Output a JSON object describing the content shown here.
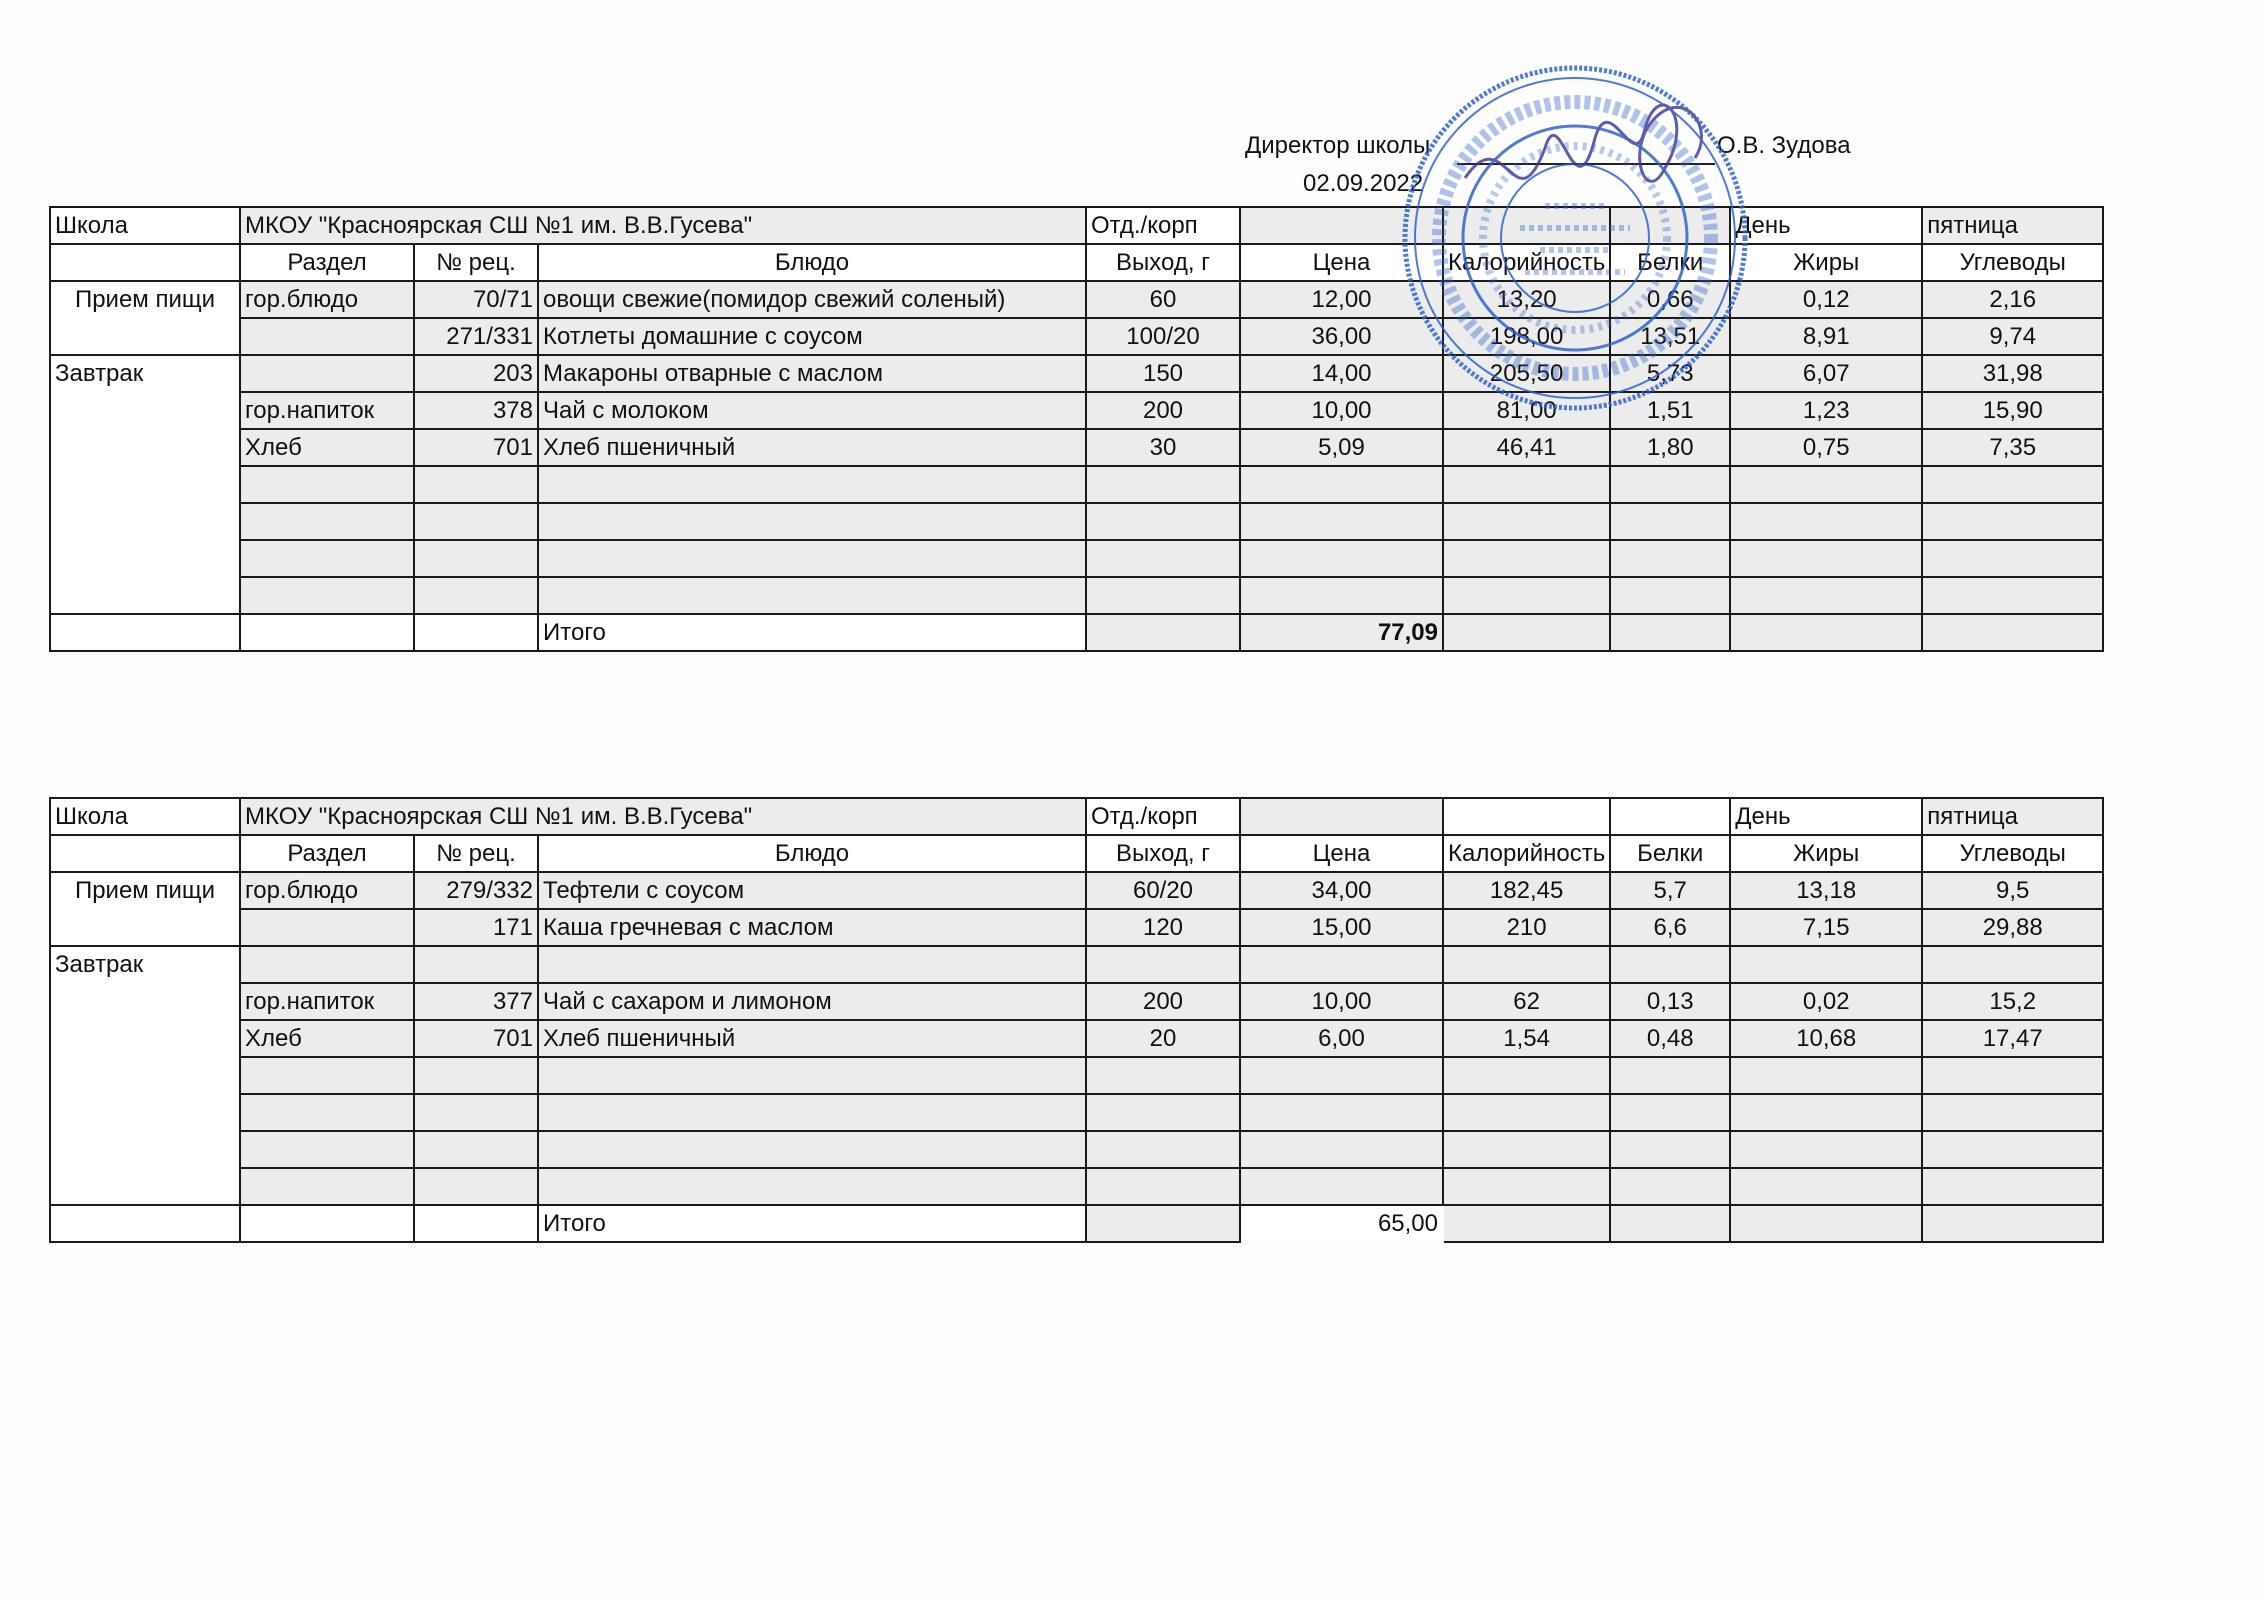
{
  "approval": {
    "position": "Директор школы",
    "name": "О.В. Зудова",
    "date": "02.09.2022"
  },
  "stamp": {
    "outer_text": "Муниципальное казенное общеобразовательное учреждение средняя школа №1 им. В.В. Гусева",
    "center_text": [
      "МКОУ",
      "«Красноярская",
      "СШ № 1",
      "им. В.В.Гусева»"
    ],
    "color": "#2a5fc9"
  },
  "tables": [
    {
      "school_label": "Школа",
      "school": "МКОУ \"Красноярская СШ №1 им. В.В.Гусева\"",
      "dept_label": "Отд./корп",
      "day_label": "День",
      "day": "пятница",
      "headers": [
        "",
        "Раздел",
        "№ рец.",
        "Блюдо",
        "Выход, г",
        "Цена",
        "Калорийность",
        "Белки",
        "Жиры",
        "Углеводы"
      ],
      "meal_labels": [
        "Прием пищи",
        "Завтрак"
      ],
      "rows": [
        [
          "гор.блюдо",
          "70/71",
          "овощи свежие(помидор свежий соленый)",
          "60",
          "12,00",
          "13,20",
          "0,66",
          "0,12",
          "2,16"
        ],
        [
          "",
          "271/331",
          "Котлеты домашние с соусом",
          "100/20",
          "36,00",
          "198,00",
          "13,51",
          "8,91",
          "9,74"
        ],
        [
          "",
          "203",
          "Макароны отварные с маслом",
          "150",
          "14,00",
          "205,50",
          "5,73",
          "6,07",
          "31,98"
        ],
        [
          "гор.напиток",
          "378",
          "Чай с молоком",
          "200",
          "10,00",
          "81,00",
          "1,51",
          "1,23",
          "15,90"
        ],
        [
          "Хлеб",
          "701",
          "Хлеб пшеничный",
          "30",
          "5,09",
          "46,41",
          "1,80",
          "0,75",
          "7,35"
        ],
        [
          "",
          "",
          "",
          "",
          "",
          "",
          "",
          "",
          ""
        ],
        [
          "",
          "",
          "",
          "",
          "",
          "",
          "",
          "",
          ""
        ],
        [
          "",
          "",
          "",
          "",
          "",
          "",
          "",
          "",
          ""
        ],
        [
          "",
          "",
          "",
          "",
          "",
          "",
          "",
          "",
          ""
        ]
      ],
      "total_label": "Итого",
      "total_price": "77,09"
    },
    {
      "school_label": "Школа",
      "school": "МКОУ \"Красноярская СШ №1 им. В.В.Гусева\"",
      "dept_label": "Отд./корп",
      "day_label": "День",
      "day": "пятница",
      "headers": [
        "",
        "Раздел",
        "№ рец.",
        "Блюдо",
        "Выход, г",
        "Цена",
        "Калорийность",
        "Белки",
        "Жиры",
        "Углеводы"
      ],
      "meal_labels": [
        "Прием пищи",
        "Завтрак"
      ],
      "rows": [
        [
          "гор.блюдо",
          "279/332",
          "Тефтели с соусом",
          "60/20",
          "34,00",
          "182,45",
          "5,7",
          "13,18",
          "9,5"
        ],
        [
          "",
          "171",
          "Каша гречневая с маслом",
          "120",
          "15,00",
          "210",
          "6,6",
          "7,15",
          "29,88"
        ],
        [
          "",
          "",
          "",
          "",
          "",
          "",
          "",
          "",
          ""
        ],
        [
          "гор.напиток",
          "377",
          "Чай с сахаром и лимоном",
          "200",
          "10,00",
          "62",
          "0,13",
          "0,02",
          "15,2"
        ],
        [
          "Хлеб",
          "701",
          "Хлеб пшеничный",
          "20",
          "6,00",
          "1,54",
          "0,48",
          "10,68",
          "17,47"
        ],
        [
          "",
          "",
          "",
          "",
          "",
          "",
          "",
          "",
          ""
        ],
        [
          "",
          "",
          "",
          "",
          "",
          "",
          "",
          "",
          ""
        ],
        [
          "",
          "",
          "",
          "",
          "",
          "",
          "",
          "",
          ""
        ],
        [
          "",
          "",
          "",
          "",
          "",
          "",
          "",
          "",
          ""
        ]
      ],
      "total_label": "Итого",
      "total_price": "65,00"
    }
  ]
}
